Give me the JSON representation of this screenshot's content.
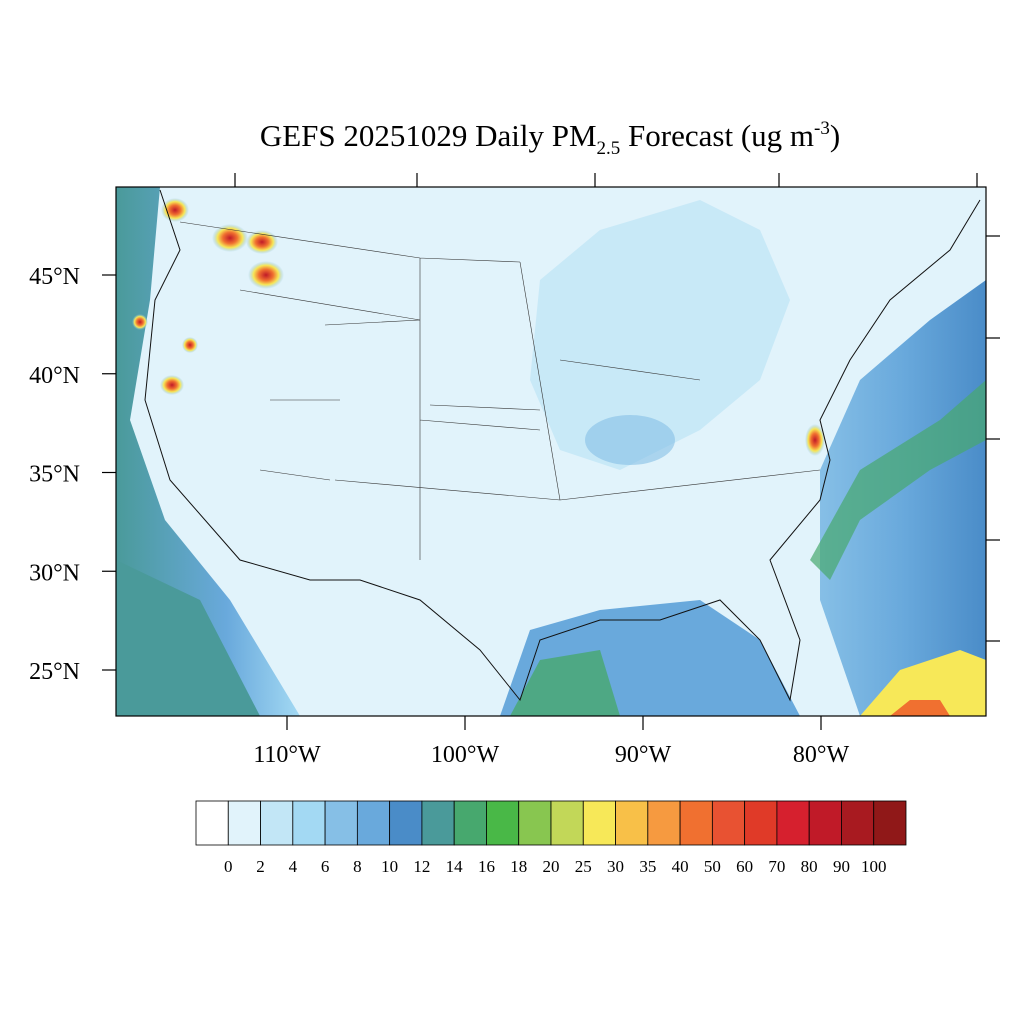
{
  "title": {
    "text": "GEFS 20251029 Daily PM",
    "subscript": "2.5",
    "mid": " Forecast (ug m",
    "superscript": "-3",
    "end": ")"
  },
  "map": {
    "lat_ticks": [
      {
        "value": 45,
        "label": "45°N"
      },
      {
        "value": 40,
        "label": "40°N"
      },
      {
        "value": 35,
        "label": "35°N"
      },
      {
        "value": 30,
        "label": "30°N"
      },
      {
        "value": 25,
        "label": "25°N"
      }
    ],
    "lon_ticks": [
      {
        "value": -110,
        "label": "110°W"
      },
      {
        "value": -100,
        "label": "100°W"
      },
      {
        "value": -90,
        "label": "90°W"
      },
      {
        "value": -80,
        "label": "80°W"
      }
    ]
  },
  "colorbar": {
    "levels": [
      0,
      2,
      4,
      6,
      8,
      10,
      12,
      14,
      16,
      18,
      20,
      25,
      30,
      35,
      40,
      50,
      60,
      70,
      80,
      90,
      100
    ],
    "colors": [
      "#ffffff",
      "#e1f3fb",
      "#c2e6f6",
      "#a3d9f3",
      "#86bfe6",
      "#69a9dc",
      "#4a8cc8",
      "#4a9a9a",
      "#47a86e",
      "#49b847",
      "#88c650",
      "#c2d758",
      "#f7e858",
      "#f8c048",
      "#f69a40",
      "#f07030",
      "#e85232",
      "#e03a28",
      "#d6202e",
      "#c01a28",
      "#a81a20",
      "#901818"
    ]
  }
}
